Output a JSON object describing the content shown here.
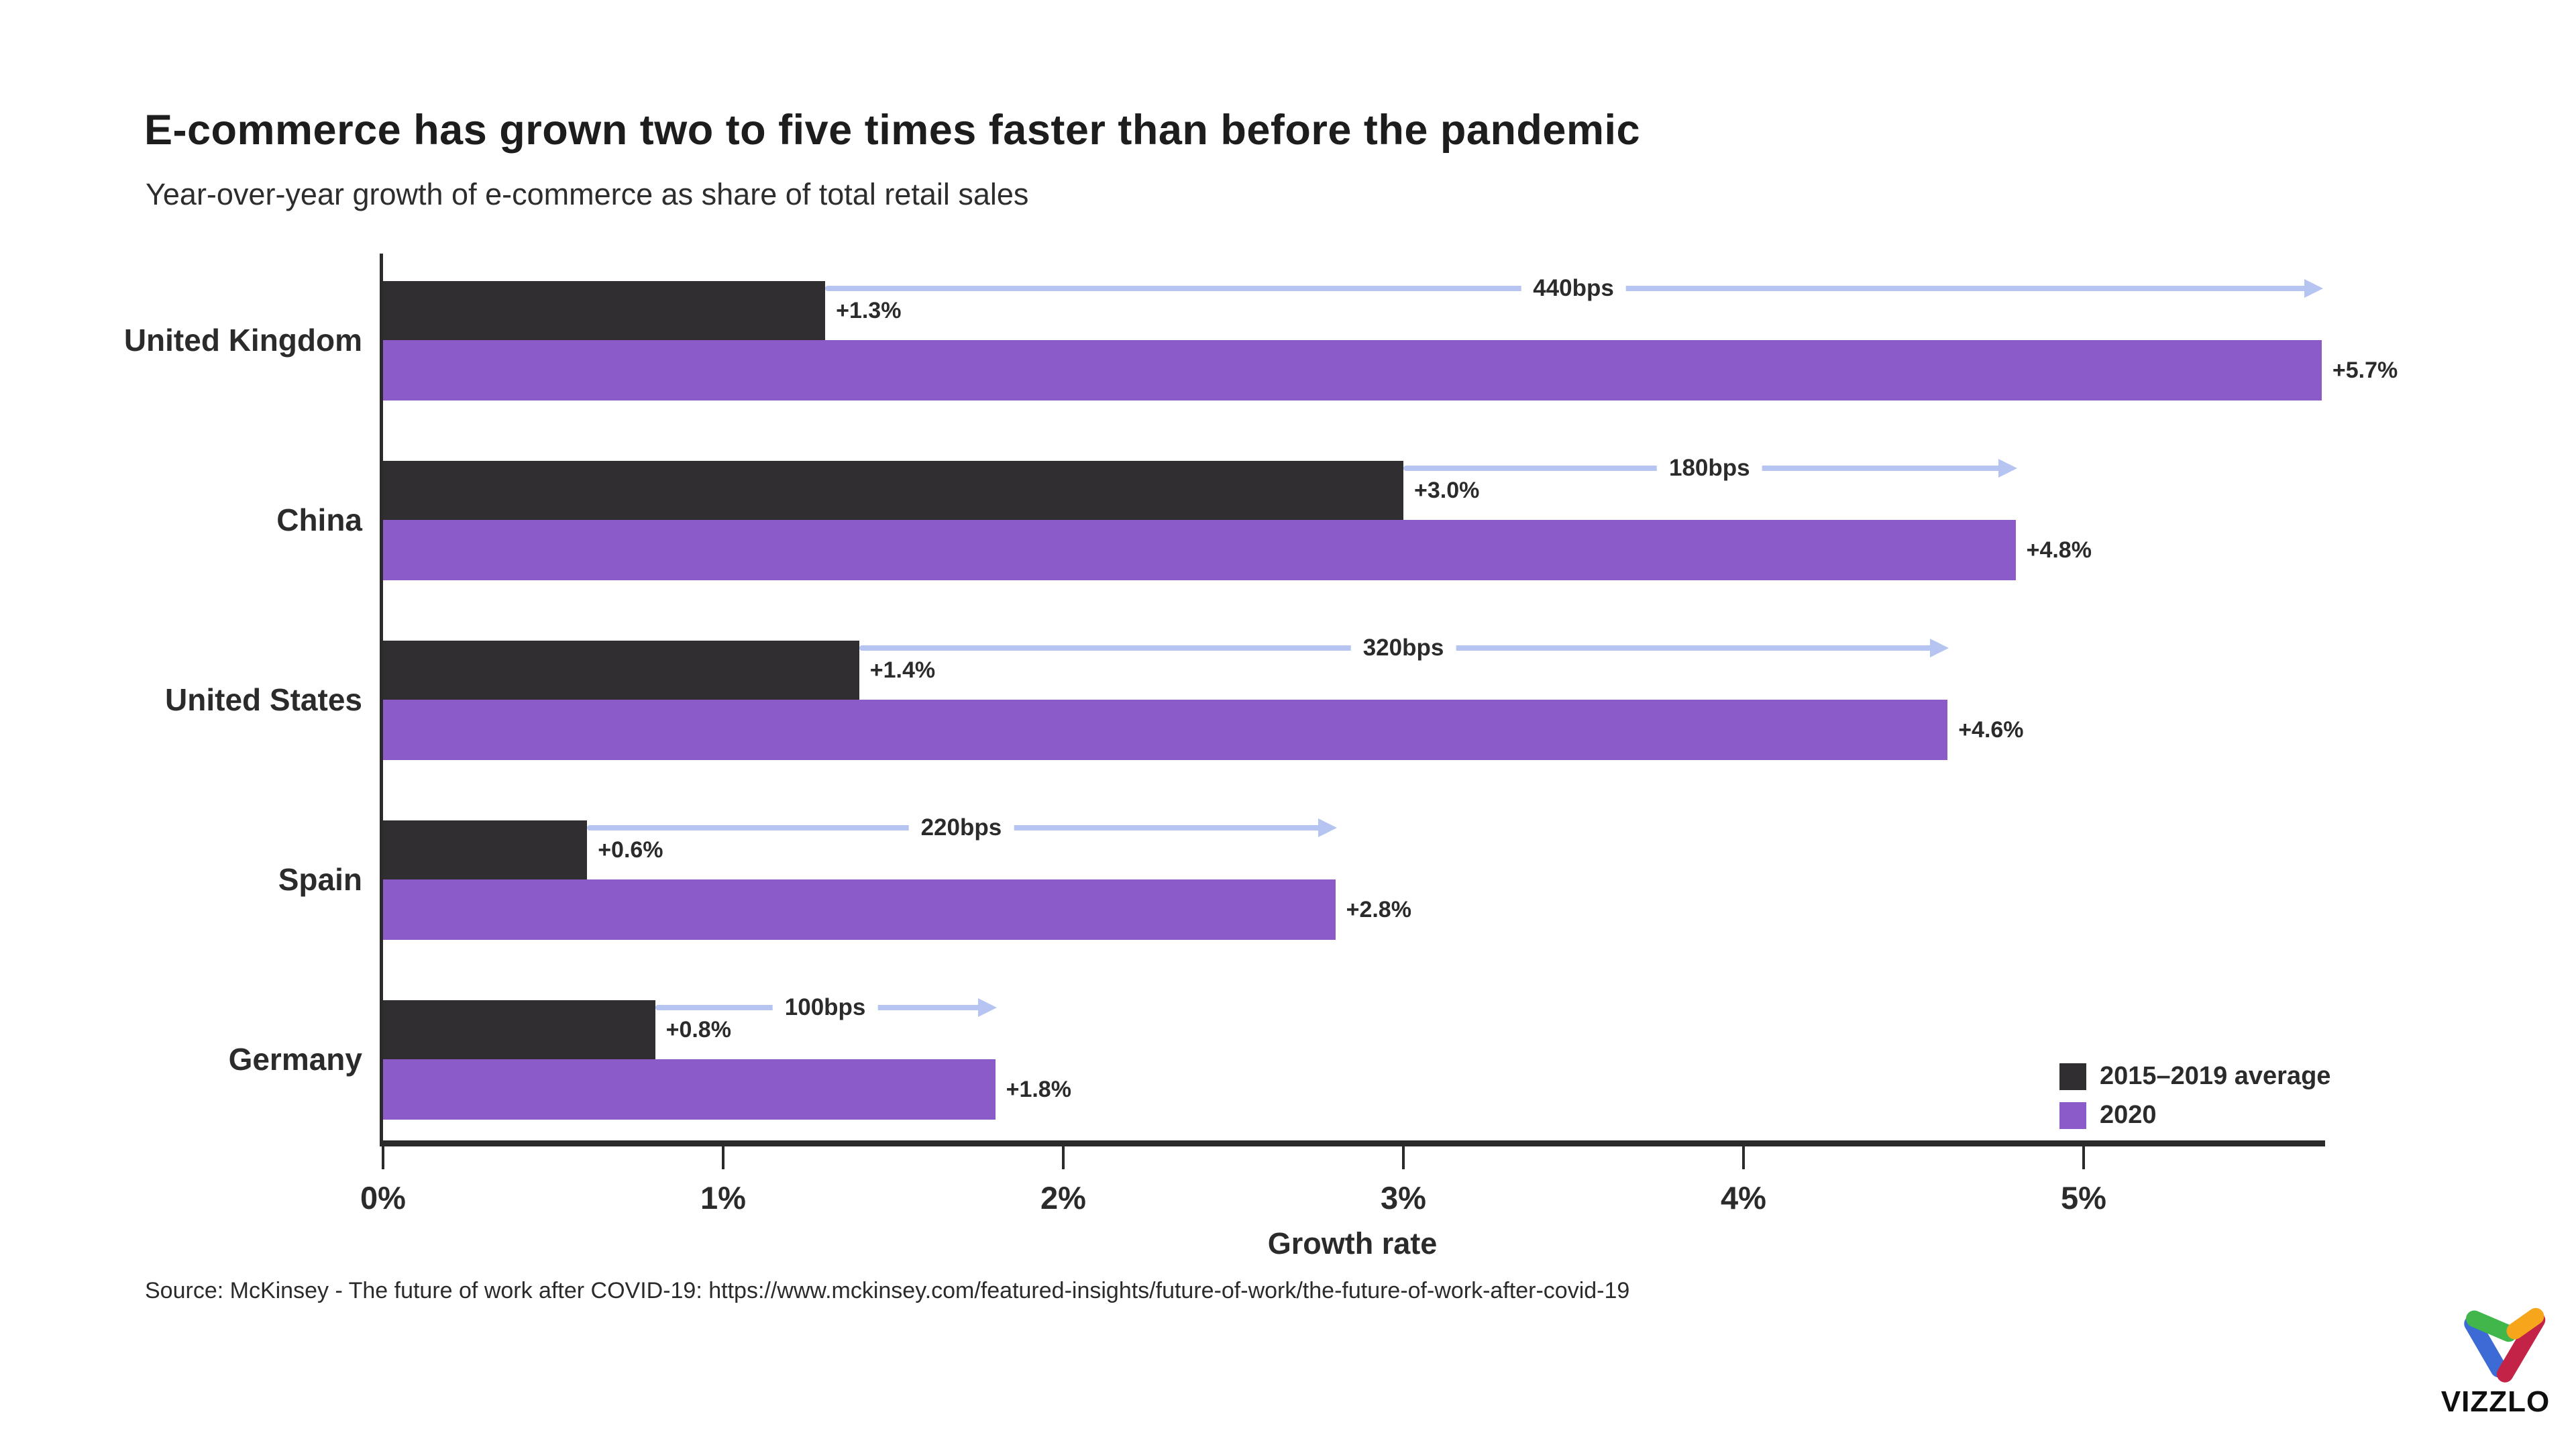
{
  "chart": {
    "title": "E-commerce has grown two to five times faster than before the pandemic",
    "subtitle": "Year-over-year growth of e-commerce as share of total retail sales",
    "x_axis_label": "Growth rate",
    "source": "Source: McKinsey - The future of work after COVID-19: https://www.mckinsey.com/featured-insights/future-of-work/the-future-of-work-after-covid-19"
  },
  "chart_data": {
    "type": "bar",
    "orientation": "horizontal",
    "title": "E-commerce has grown two to five times faster than before the pandemic",
    "subtitle": "Year-over-year growth of e-commerce as share of total retail sales",
    "xlabel": "Growth rate",
    "categories": [
      "United Kingdom",
      "China",
      "United States",
      "Spain",
      "Germany"
    ],
    "series": [
      {
        "name": "2015–2019 average",
        "color": "#302E31",
        "values": [
          1.3,
          3.0,
          1.4,
          0.6,
          0.8
        ],
        "value_labels": [
          "+1.3%",
          "+3.0%",
          "+1.4%",
          "+0.6%",
          "+0.8%"
        ]
      },
      {
        "name": "2020",
        "color": "#8A5BC9",
        "values": [
          5.7,
          4.8,
          4.6,
          2.8,
          1.8
        ],
        "value_labels": [
          "+5.7%",
          "+4.8%",
          "+4.6%",
          "+2.8%",
          "+1.8%"
        ]
      }
    ],
    "difference_arrows": {
      "labels": [
        "440bps",
        "180bps",
        "320bps",
        "220bps",
        "100bps"
      ],
      "color": "#B5C4F1"
    },
    "x_ticks": {
      "values": [
        0,
        1,
        2,
        3,
        4,
        5
      ],
      "labels": [
        "0%",
        "1%",
        "2%",
        "3%",
        "4%",
        "5%"
      ]
    },
    "xlim": [
      0,
      5.7
    ],
    "grid": false,
    "legend_position": "bottom-right",
    "axis_color": "#2B2B2B"
  },
  "branding": {
    "logo_text": "VIZZLO",
    "logo_colors": {
      "green": "#41B64A",
      "orange": "#F7A61B",
      "blue": "#3D6BD5",
      "red": "#C32347"
    }
  }
}
